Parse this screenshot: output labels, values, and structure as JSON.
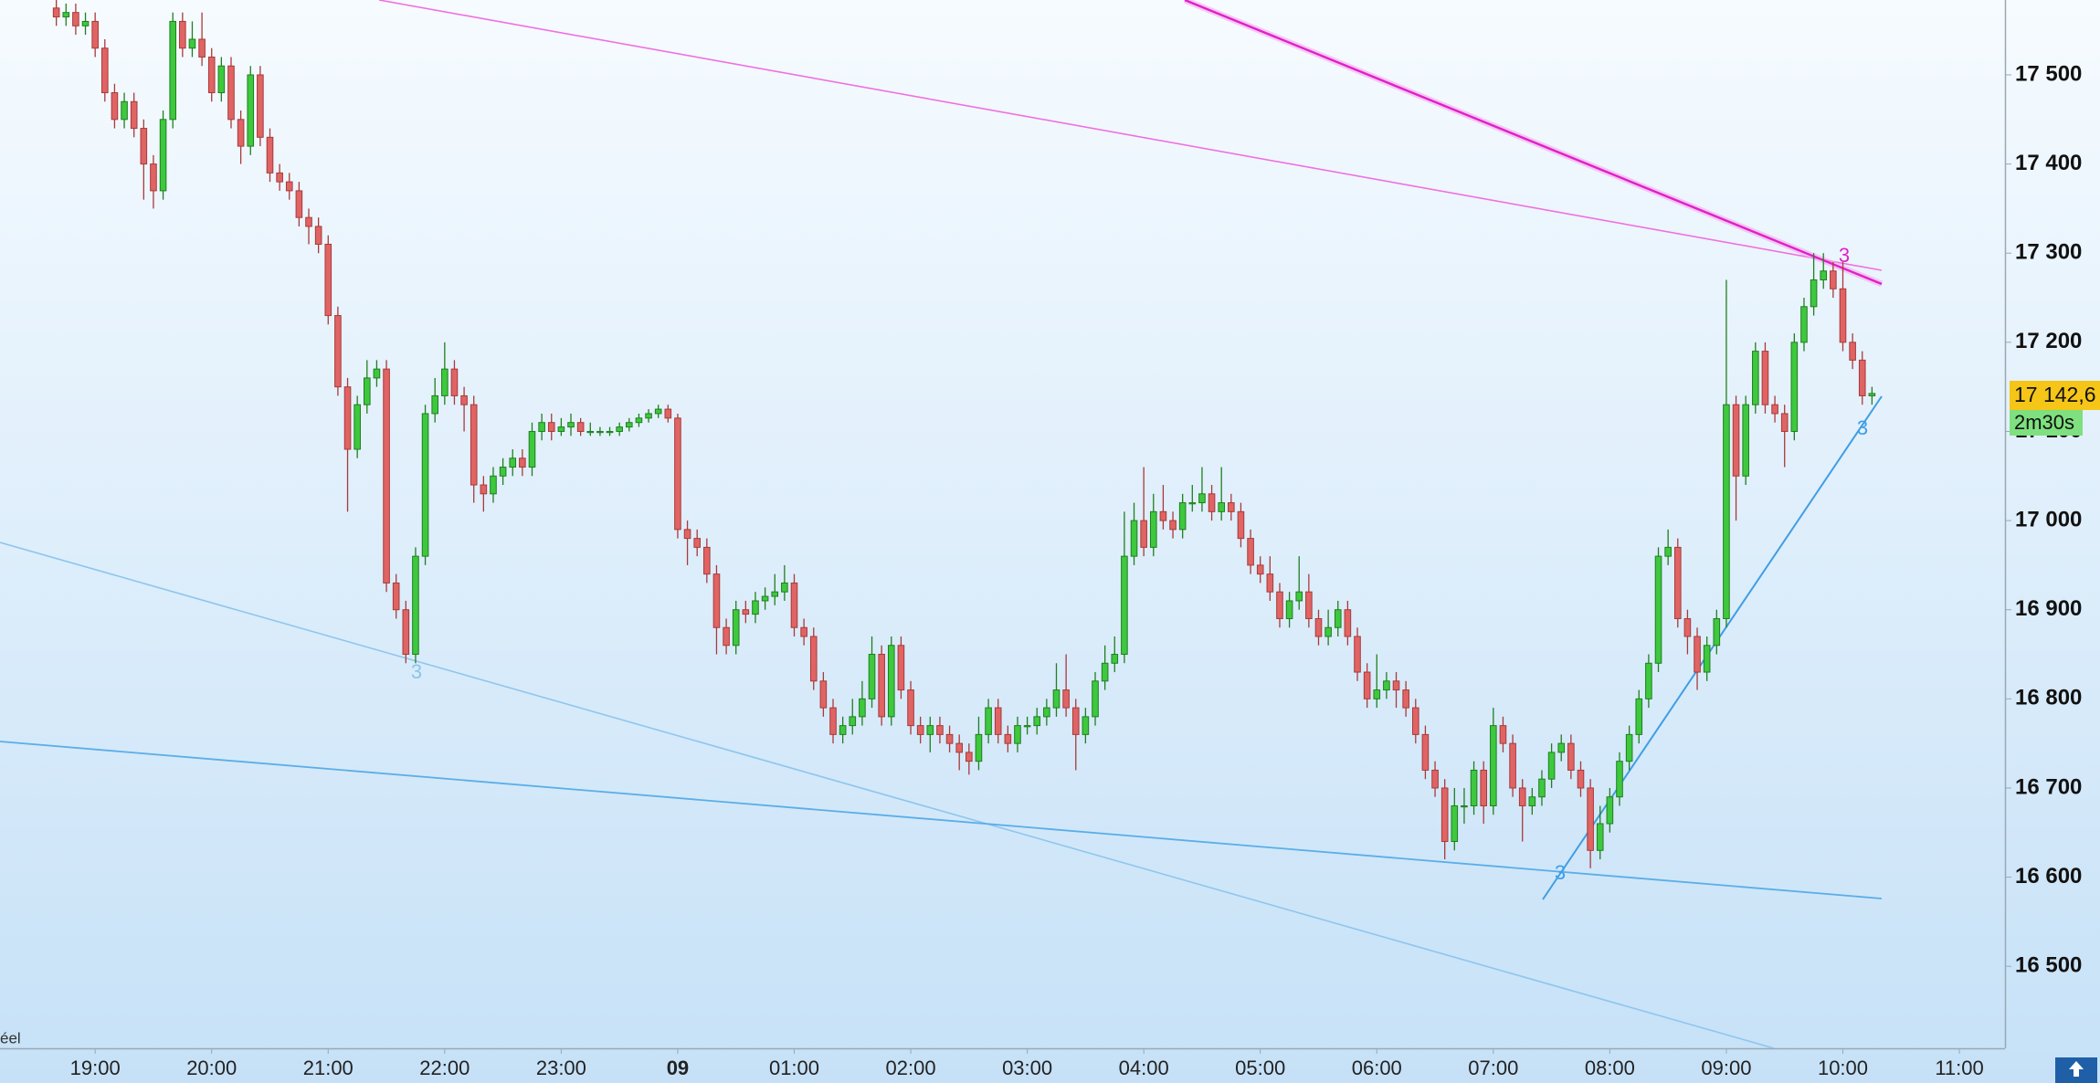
{
  "chart_data": {
    "type": "candlestick",
    "open": [
      17575,
      17565,
      17570,
      17555,
      17560,
      17530,
      17480,
      17450,
      17470,
      17440,
      17400,
      17370,
      17450,
      17560,
      17530,
      17540,
      17520,
      17480,
      17510,
      17450,
      17420,
      17500,
      17430,
      17390,
      17380,
      17370,
      17340,
      17330,
      17310,
      17230,
      17150,
      17080,
      17130,
      17160,
      17170,
      16930,
      16900,
      16850,
      16960,
      17120,
      17140,
      17170,
      17140,
      17130,
      17040,
      17030,
      17050,
      17060,
      17070,
      17060,
      17100,
      17110,
      17100,
      17105,
      17110,
      17100,
      17100,
      17100,
      17100,
      17105,
      17110,
      17115,
      17120,
      17125,
      17115,
      16990,
      16980,
      16970,
      16940,
      16880,
      16860,
      16900,
      16895,
      16910,
      16915,
      16920,
      16930,
      16880,
      16870,
      16820,
      16790,
      16760,
      16770,
      16780,
      16800,
      16850,
      16780,
      16860,
      16810,
      16770,
      16760,
      16770,
      16760,
      16750,
      16740,
      16730,
      16760,
      16790,
      16760,
      16750,
      16770,
      16770,
      16780,
      16790,
      16810,
      16790,
      16760,
      16780,
      16820,
      16840,
      16850,
      16960,
      17000,
      16970,
      17010,
      17000,
      16990,
      17020,
      17020,
      17030,
      17010,
      17020,
      17010,
      16980,
      16950,
      16940,
      16920,
      16890,
      16910,
      16920,
      16890,
      16870,
      16880,
      16900,
      16870,
      16830,
      16800,
      16810,
      16820,
      16810,
      16790,
      16760,
      16720,
      16700,
      16640,
      16680,
      16680,
      16720,
      16680,
      16770,
      16750,
      16700,
      16680,
      16690,
      16710,
      16740,
      16750,
      16720,
      16700,
      16630,
      16660,
      16690,
      16730,
      16760,
      16800,
      16840,
      16960,
      16970,
      16890,
      16870,
      16830,
      16860,
      16890,
      17130,
      17050,
      17130,
      17190,
      17130,
      17120,
      17100,
      17200,
      17240,
      17270,
      17280,
      17260,
      17200,
      17180,
      17140
    ],
    "high": [
      17585,
      17580,
      17580,
      17570,
      17570,
      17540,
      17490,
      17480,
      17480,
      17450,
      17410,
      17460,
      17570,
      17570,
      17560,
      17570,
      17530,
      17520,
      17520,
      17460,
      17510,
      17510,
      17440,
      17400,
      17390,
      17380,
      17350,
      17340,
      17320,
      17240,
      17160,
      17140,
      17180,
      17180,
      17180,
      16940,
      16910,
      16970,
      17130,
      17160,
      17200,
      17180,
      17150,
      17140,
      17050,
      17060,
      17070,
      17080,
      17080,
      17110,
      17120,
      17120,
      17115,
      17120,
      17115,
      17110,
      17105,
      17105,
      17110,
      17115,
      17120,
      17125,
      17130,
      17130,
      17120,
      17000,
      16990,
      16980,
      16950,
      16890,
      16910,
      16910,
      16920,
      16925,
      16940,
      16950,
      16940,
      16890,
      16880,
      16830,
      16800,
      16780,
      16800,
      16820,
      16870,
      16860,
      16870,
      16870,
      16820,
      16780,
      16780,
      16780,
      16770,
      16760,
      16750,
      16780,
      16800,
      16800,
      16770,
      16780,
      16780,
      16790,
      16800,
      16840,
      16850,
      16800,
      16790,
      16830,
      16860,
      16870,
      17010,
      17020,
      17060,
      17030,
      17040,
      17010,
      17030,
      17040,
      17060,
      17040,
      17060,
      17030,
      17020,
      16990,
      16960,
      16960,
      16930,
      16920,
      16960,
      16940,
      16900,
      16900,
      16910,
      16910,
      16880,
      16840,
      16850,
      16830,
      16830,
      16820,
      16800,
      16770,
      16730,
      16710,
      16700,
      16700,
      16730,
      16730,
      16790,
      16780,
      16760,
      16710,
      16700,
      16720,
      16750,
      16760,
      16760,
      16730,
      16710,
      16680,
      16700,
      16740,
      16770,
      16810,
      16850,
      16970,
      16990,
      16980,
      16900,
      16880,
      16870,
      16900,
      17270,
      17140,
      17140,
      17200,
      17200,
      17140,
      17130,
      17210,
      17250,
      17300,
      17300,
      17290,
      17290,
      17210,
      17190,
      17150
    ],
    "low": [
      17555,
      17555,
      17545,
      17545,
      17520,
      17470,
      17440,
      17440,
      17430,
      17360,
      17350,
      17360,
      17440,
      17520,
      17520,
      17510,
      17470,
      17470,
      17440,
      17400,
      17410,
      17420,
      17380,
      17370,
      17360,
      17330,
      17310,
      17300,
      17220,
      17140,
      17010,
      17070,
      17120,
      17150,
      16920,
      16890,
      16840,
      16840,
      16950,
      17110,
      17130,
      17130,
      17100,
      17020,
      17010,
      17020,
      17040,
      17050,
      17050,
      17050,
      17090,
      17090,
      17095,
      17095,
      17095,
      17095,
      17095,
      17095,
      17095,
      17100,
      17105,
      17110,
      17115,
      17110,
      16980,
      16950,
      16960,
      16930,
      16850,
      16850,
      16850,
      16885,
      16885,
      16900,
      16905,
      16910,
      16870,
      16860,
      16810,
      16780,
      16750,
      16750,
      16760,
      16770,
      16790,
      16770,
      16770,
      16800,
      16760,
      16750,
      16740,
      16750,
      16740,
      16720,
      16715,
      16720,
      16750,
      16750,
      16740,
      16740,
      16760,
      16760,
      16770,
      16780,
      16780,
      16720,
      16750,
      16770,
      16810,
      16830,
      16840,
      16950,
      16960,
      16960,
      16990,
      16980,
      16980,
      17010,
      17010,
      17000,
      17000,
      17000,
      16970,
      16940,
      16930,
      16910,
      16880,
      16880,
      16900,
      16880,
      16860,
      16860,
      16870,
      16860,
      16820,
      16790,
      16790,
      16800,
      16790,
      16780,
      16750,
      16710,
      16690,
      16620,
      16630,
      16660,
      16670,
      16660,
      16670,
      16740,
      16690,
      16640,
      16670,
      16680,
      16700,
      16730,
      16710,
      16690,
      16610,
      16620,
      16650,
      16680,
      16720,
      16750,
      16790,
      16830,
      16950,
      16880,
      16850,
      16810,
      16820,
      16850,
      16880,
      17000,
      17040,
      17120,
      17120,
      17110,
      17060,
      17090,
      17190,
      17230,
      17260,
      17250,
      17190,
      17170,
      17130,
      17130
    ],
    "close": [
      17565,
      17570,
      17555,
      17560,
      17530,
      17480,
      17450,
      17470,
      17440,
      17400,
      17370,
      17450,
      17560,
      17530,
      17540,
      17520,
      17480,
      17510,
      17450,
      17420,
      17500,
      17430,
      17390,
      17380,
      17370,
      17340,
      17330,
      17310,
      17230,
      17150,
      17080,
      17130,
      17160,
      17170,
      16930,
      16900,
      16850,
      16960,
      17120,
      17140,
      17170,
      17140,
      17130,
      17040,
      17030,
      17050,
      17060,
      17070,
      17060,
      17100,
      17110,
      17100,
      17105,
      17110,
      17100,
      17100,
      17100,
      17100,
      17105,
      17110,
      17115,
      17120,
      17125,
      17115,
      16990,
      16980,
      16970,
      16940,
      16880,
      16860,
      16900,
      16895,
      16910,
      16915,
      16920,
      16930,
      16880,
      16870,
      16820,
      16790,
      16760,
      16770,
      16780,
      16800,
      16850,
      16780,
      16860,
      16810,
      16770,
      16760,
      16770,
      16760,
      16750,
      16740,
      16730,
      16760,
      16790,
      16760,
      16750,
      16770,
      16770,
      16780,
      16790,
      16810,
      16790,
      16760,
      16780,
      16820,
      16840,
      16850,
      16960,
      17000,
      16970,
      17010,
      17000,
      16990,
      17020,
      17020,
      17030,
      17010,
      17020,
      17010,
      16980,
      16950,
      16940,
      16920,
      16890,
      16910,
      16920,
      16890,
      16870,
      16880,
      16900,
      16870,
      16830,
      16800,
      16810,
      16820,
      16810,
      16790,
      16760,
      16720,
      16700,
      16640,
      16680,
      16680,
      16720,
      16680,
      16770,
      16750,
      16700,
      16680,
      16690,
      16710,
      16740,
      16750,
      16720,
      16700,
      16630,
      16660,
      16690,
      16730,
      16760,
      16800,
      16840,
      16960,
      16970,
      16890,
      16870,
      16830,
      16860,
      16890,
      17130,
      17050,
      17130,
      17190,
      17130,
      17120,
      17100,
      17200,
      17240,
      17270,
      17280,
      17260,
      17200,
      17180,
      17140,
      17142.6
    ],
    "up_color": "#3ec83e",
    "down_color": "#e06464",
    "xlim": [
      -5.8,
      200.7
    ],
    "ylim": [
      16408,
      17584
    ],
    "xticks": [
      {
        "value": 4,
        "label": "19:00"
      },
      {
        "value": 16,
        "label": "20:00"
      },
      {
        "value": 28,
        "label": "21:00"
      },
      {
        "value": 40,
        "label": "22:00"
      },
      {
        "value": 52,
        "label": "23:00"
      },
      {
        "value": 64,
        "label": "09"
      },
      {
        "value": 76,
        "label": "01:00"
      },
      {
        "value": 88,
        "label": "02:00"
      },
      {
        "value": 100,
        "label": "03:00"
      },
      {
        "value": 112,
        "label": "04:00"
      },
      {
        "value": 124,
        "label": "05:00"
      },
      {
        "value": 136,
        "label": "06:00"
      },
      {
        "value": 148,
        "label": "07:00"
      },
      {
        "value": 160,
        "label": "08:00"
      },
      {
        "value": 172,
        "label": "09:00"
      },
      {
        "value": 184,
        "label": "10:00"
      },
      {
        "value": 196,
        "label": "11:00"
      }
    ],
    "yticks": [
      {
        "value": 16500,
        "label": "16 500"
      },
      {
        "value": 16600,
        "label": "16 600"
      },
      {
        "value": 16700,
        "label": "16 700"
      },
      {
        "value": 16800,
        "label": "16 800"
      },
      {
        "value": 16900,
        "label": "16 900"
      },
      {
        "value": 17000,
        "label": "17 000"
      },
      {
        "value": 17100,
        "label": "17 100"
      },
      {
        "value": 17200,
        "label": "17 200"
      },
      {
        "value": 17300,
        "label": "17 300"
      },
      {
        "value": 17400,
        "label": "17 400"
      },
      {
        "value": 17500,
        "label": "17 500"
      }
    ],
    "last_price_label": "17 142,6",
    "countdown": "2m30s",
    "annotations": [
      "3",
      "3",
      "3",
      "3"
    ],
    "footer_text": "éel"
  }
}
